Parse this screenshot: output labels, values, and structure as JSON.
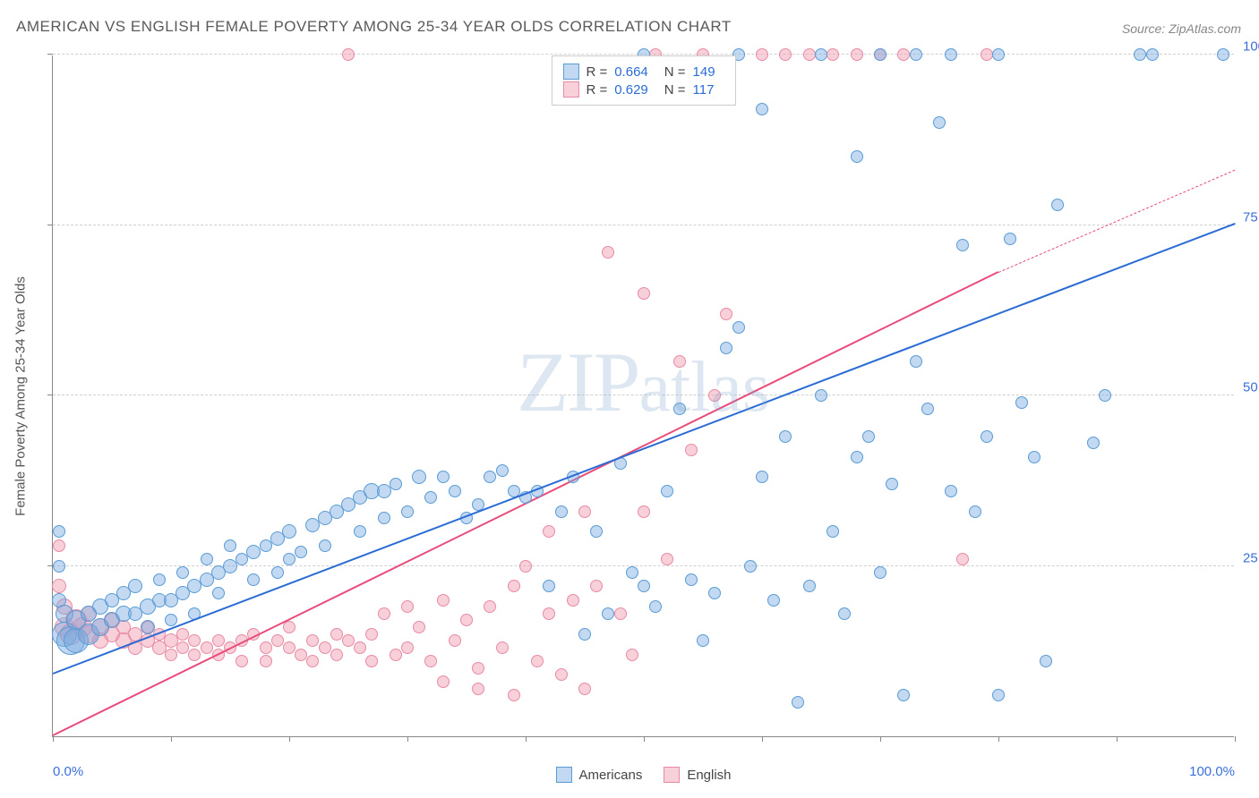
{
  "title": "AMERICAN VS ENGLISH FEMALE POVERTY AMONG 25-34 YEAR OLDS CORRELATION CHART",
  "source_label": "Source: ZipAtlas.com",
  "y_axis_label": "Female Poverty Among 25-34 Year Olds",
  "watermark": "ZIPatlas",
  "chart": {
    "type": "scatter",
    "xlim": [
      0,
      100
    ],
    "ylim": [
      0,
      100
    ],
    "x_ticks_major": [
      0,
      100
    ],
    "x_tick_labels": [
      "0.0%",
      "100.0%"
    ],
    "x_minor_ticks": [
      10,
      20,
      30,
      40,
      50,
      60,
      70,
      80,
      90
    ],
    "y_ticks_major": [
      25,
      50,
      75,
      100
    ],
    "y_tick_labels": [
      "25.0%",
      "50.0%",
      "75.0%",
      "100.0%"
    ],
    "y_minor_ticks": [],
    "grid_color": "#d0d0d0",
    "axis_color": "#888888",
    "background_color": "#ffffff",
    "tick_label_color": "#3a6fd8",
    "axis_label_color": "#555555"
  },
  "series": {
    "americans": {
      "label": "Americans",
      "fill": "rgba(120,170,225,0.45)",
      "stroke": "#5a9bd5",
      "trend_color": "#2b6cd4",
      "trend_width": 2.5,
      "trend_style": "solid",
      "R": "0.664",
      "N": "149",
      "trend": {
        "x1": 0,
        "y1": 9,
        "x2": 100,
        "y2": 75
      },
      "points": [
        {
          "x": 0.5,
          "y": 30,
          "r": 7
        },
        {
          "x": 0.5,
          "y": 25,
          "r": 7
        },
        {
          "x": 0.5,
          "y": 20,
          "r": 8
        },
        {
          "x": 1,
          "y": 18,
          "r": 10
        },
        {
          "x": 1,
          "y": 15,
          "r": 14
        },
        {
          "x": 1.5,
          "y": 14,
          "r": 16
        },
        {
          "x": 2,
          "y": 14,
          "r": 14
        },
        {
          "x": 2,
          "y": 17,
          "r": 11
        },
        {
          "x": 3,
          "y": 15,
          "r": 12
        },
        {
          "x": 3,
          "y": 18,
          "r": 9
        },
        {
          "x": 4,
          "y": 16,
          "r": 10
        },
        {
          "x": 4,
          "y": 19,
          "r": 9
        },
        {
          "x": 5,
          "y": 17,
          "r": 9
        },
        {
          "x": 5,
          "y": 20,
          "r": 8
        },
        {
          "x": 6,
          "y": 18,
          "r": 9
        },
        {
          "x": 6,
          "y": 21,
          "r": 8
        },
        {
          "x": 7,
          "y": 18,
          "r": 8
        },
        {
          "x": 7,
          "y": 22,
          "r": 8
        },
        {
          "x": 8,
          "y": 19,
          "r": 9
        },
        {
          "x": 8,
          "y": 16,
          "r": 8
        },
        {
          "x": 9,
          "y": 20,
          "r": 8
        },
        {
          "x": 9,
          "y": 23,
          "r": 7
        },
        {
          "x": 10,
          "y": 20,
          "r": 8
        },
        {
          "x": 10,
          "y": 17,
          "r": 7
        },
        {
          "x": 11,
          "y": 21,
          "r": 8
        },
        {
          "x": 11,
          "y": 24,
          "r": 7
        },
        {
          "x": 12,
          "y": 22,
          "r": 8
        },
        {
          "x": 12,
          "y": 18,
          "r": 7
        },
        {
          "x": 13,
          "y": 23,
          "r": 8
        },
        {
          "x": 13,
          "y": 26,
          "r": 7
        },
        {
          "x": 14,
          "y": 24,
          "r": 8
        },
        {
          "x": 14,
          "y": 21,
          "r": 7
        },
        {
          "x": 15,
          "y": 25,
          "r": 8
        },
        {
          "x": 15,
          "y": 28,
          "r": 7
        },
        {
          "x": 16,
          "y": 26,
          "r": 7
        },
        {
          "x": 17,
          "y": 27,
          "r": 8
        },
        {
          "x": 17,
          "y": 23,
          "r": 7
        },
        {
          "x": 18,
          "y": 28,
          "r": 7
        },
        {
          "x": 19,
          "y": 29,
          "r": 8
        },
        {
          "x": 19,
          "y": 24,
          "r": 7
        },
        {
          "x": 20,
          "y": 30,
          "r": 8
        },
        {
          "x": 20,
          "y": 26,
          "r": 7
        },
        {
          "x": 21,
          "y": 27,
          "r": 7
        },
        {
          "x": 22,
          "y": 31,
          "r": 8
        },
        {
          "x": 23,
          "y": 32,
          "r": 8
        },
        {
          "x": 23,
          "y": 28,
          "r": 7
        },
        {
          "x": 24,
          "y": 33,
          "r": 8
        },
        {
          "x": 25,
          "y": 34,
          "r": 8
        },
        {
          "x": 26,
          "y": 35,
          "r": 8
        },
        {
          "x": 26,
          "y": 30,
          "r": 7
        },
        {
          "x": 27,
          "y": 36,
          "r": 9
        },
        {
          "x": 28,
          "y": 36,
          "r": 8
        },
        {
          "x": 28,
          "y": 32,
          "r": 7
        },
        {
          "x": 29,
          "y": 37,
          "r": 7
        },
        {
          "x": 30,
          "y": 33,
          "r": 7
        },
        {
          "x": 31,
          "y": 38,
          "r": 8
        },
        {
          "x": 32,
          "y": 35,
          "r": 7
        },
        {
          "x": 33,
          "y": 38,
          "r": 7
        },
        {
          "x": 34,
          "y": 36,
          "r": 7
        },
        {
          "x": 35,
          "y": 32,
          "r": 7
        },
        {
          "x": 36,
          "y": 34,
          "r": 7
        },
        {
          "x": 37,
          "y": 38,
          "r": 7
        },
        {
          "x": 38,
          "y": 39,
          "r": 7
        },
        {
          "x": 39,
          "y": 36,
          "r": 7
        },
        {
          "x": 40,
          "y": 35,
          "r": 7
        },
        {
          "x": 41,
          "y": 36,
          "r": 7
        },
        {
          "x": 42,
          "y": 22,
          "r": 7
        },
        {
          "x": 43,
          "y": 33,
          "r": 7
        },
        {
          "x": 44,
          "y": 38,
          "r": 7
        },
        {
          "x": 45,
          "y": 15,
          "r": 7
        },
        {
          "x": 46,
          "y": 30,
          "r": 7
        },
        {
          "x": 47,
          "y": 18,
          "r": 7
        },
        {
          "x": 48,
          "y": 40,
          "r": 7
        },
        {
          "x": 49,
          "y": 24,
          "r": 7
        },
        {
          "x": 50,
          "y": 22,
          "r": 7
        },
        {
          "x": 50,
          "y": 100,
          "r": 7
        },
        {
          "x": 51,
          "y": 19,
          "r": 7
        },
        {
          "x": 52,
          "y": 36,
          "r": 7
        },
        {
          "x": 53,
          "y": 48,
          "r": 7
        },
        {
          "x": 54,
          "y": 23,
          "r": 7
        },
        {
          "x": 55,
          "y": 14,
          "r": 7
        },
        {
          "x": 56,
          "y": 21,
          "r": 7
        },
        {
          "x": 57,
          "y": 57,
          "r": 7
        },
        {
          "x": 58,
          "y": 100,
          "r": 7
        },
        {
          "x": 58,
          "y": 60,
          "r": 7
        },
        {
          "x": 59,
          "y": 25,
          "r": 7
        },
        {
          "x": 60,
          "y": 38,
          "r": 7
        },
        {
          "x": 60,
          "y": 92,
          "r": 7
        },
        {
          "x": 61,
          "y": 20,
          "r": 7
        },
        {
          "x": 62,
          "y": 44,
          "r": 7
        },
        {
          "x": 63,
          "y": 5,
          "r": 7
        },
        {
          "x": 64,
          "y": 22,
          "r": 7
        },
        {
          "x": 65,
          "y": 50,
          "r": 7
        },
        {
          "x": 65,
          "y": 100,
          "r": 7
        },
        {
          "x": 66,
          "y": 30,
          "r": 7
        },
        {
          "x": 67,
          "y": 18,
          "r": 7
        },
        {
          "x": 68,
          "y": 41,
          "r": 7
        },
        {
          "x": 68,
          "y": 85,
          "r": 7
        },
        {
          "x": 69,
          "y": 44,
          "r": 7
        },
        {
          "x": 70,
          "y": 24,
          "r": 7
        },
        {
          "x": 70,
          "y": 100,
          "r": 7
        },
        {
          "x": 71,
          "y": 37,
          "r": 7
        },
        {
          "x": 72,
          "y": 6,
          "r": 7
        },
        {
          "x": 73,
          "y": 55,
          "r": 7
        },
        {
          "x": 73,
          "y": 100,
          "r": 7
        },
        {
          "x": 74,
          "y": 48,
          "r": 7
        },
        {
          "x": 75,
          "y": 90,
          "r": 7
        },
        {
          "x": 76,
          "y": 36,
          "r": 7
        },
        {
          "x": 76,
          "y": 100,
          "r": 7
        },
        {
          "x": 77,
          "y": 72,
          "r": 7
        },
        {
          "x": 78,
          "y": 33,
          "r": 7
        },
        {
          "x": 79,
          "y": 44,
          "r": 7
        },
        {
          "x": 80,
          "y": 6,
          "r": 7
        },
        {
          "x": 80,
          "y": 100,
          "r": 7
        },
        {
          "x": 81,
          "y": 73,
          "r": 7
        },
        {
          "x": 82,
          "y": 49,
          "r": 7
        },
        {
          "x": 83,
          "y": 41,
          "r": 7
        },
        {
          "x": 84,
          "y": 11,
          "r": 7
        },
        {
          "x": 85,
          "y": 78,
          "r": 7
        },
        {
          "x": 88,
          "y": 43,
          "r": 7
        },
        {
          "x": 89,
          "y": 50,
          "r": 7
        },
        {
          "x": 92,
          "y": 100,
          "r": 7
        },
        {
          "x": 93,
          "y": 100,
          "r": 7
        },
        {
          "x": 99,
          "y": 100,
          "r": 7
        }
      ]
    },
    "english": {
      "label": "English",
      "fill": "rgba(240,150,170,0.45)",
      "stroke": "#e88aa5",
      "trend_color": "#e94b7a",
      "trend_width": 2.5,
      "trend_style": "solid",
      "trend_extend_style": "dashed",
      "R": "0.629",
      "N": "117",
      "trend": {
        "x1": 0,
        "y1": 0,
        "x2": 80,
        "y2": 68
      },
      "trend_extend": {
        "x1": 80,
        "y1": 68,
        "x2": 100,
        "y2": 83
      },
      "points": [
        {
          "x": 0.5,
          "y": 28,
          "r": 7
        },
        {
          "x": 0.5,
          "y": 22,
          "r": 8
        },
        {
          "x": 1,
          "y": 19,
          "r": 9
        },
        {
          "x": 1,
          "y": 16,
          "r": 11
        },
        {
          "x": 1.5,
          "y": 15,
          "r": 12
        },
        {
          "x": 2,
          "y": 17,
          "r": 12
        },
        {
          "x": 2.5,
          "y": 16,
          "r": 11
        },
        {
          "x": 3,
          "y": 15,
          "r": 10
        },
        {
          "x": 3,
          "y": 18,
          "r": 9
        },
        {
          "x": 4,
          "y": 16,
          "r": 10
        },
        {
          "x": 4,
          "y": 14,
          "r": 9
        },
        {
          "x": 5,
          "y": 15,
          "r": 9
        },
        {
          "x": 5,
          "y": 17,
          "r": 8
        },
        {
          "x": 6,
          "y": 14,
          "r": 9
        },
        {
          "x": 6,
          "y": 16,
          "r": 8
        },
        {
          "x": 7,
          "y": 15,
          "r": 8
        },
        {
          "x": 7,
          "y": 13,
          "r": 8
        },
        {
          "x": 8,
          "y": 14,
          "r": 8
        },
        {
          "x": 8,
          "y": 16,
          "r": 7
        },
        {
          "x": 9,
          "y": 13,
          "r": 8
        },
        {
          "x": 9,
          "y": 15,
          "r": 7
        },
        {
          "x": 10,
          "y": 14,
          "r": 8
        },
        {
          "x": 10,
          "y": 12,
          "r": 7
        },
        {
          "x": 11,
          "y": 13,
          "r": 7
        },
        {
          "x": 11,
          "y": 15,
          "r": 7
        },
        {
          "x": 12,
          "y": 14,
          "r": 7
        },
        {
          "x": 12,
          "y": 12,
          "r": 7
        },
        {
          "x": 13,
          "y": 13,
          "r": 7
        },
        {
          "x": 14,
          "y": 14,
          "r": 7
        },
        {
          "x": 14,
          "y": 12,
          "r": 7
        },
        {
          "x": 15,
          "y": 13,
          "r": 7
        },
        {
          "x": 16,
          "y": 14,
          "r": 7
        },
        {
          "x": 16,
          "y": 11,
          "r": 7
        },
        {
          "x": 17,
          "y": 15,
          "r": 7
        },
        {
          "x": 18,
          "y": 13,
          "r": 7
        },
        {
          "x": 18,
          "y": 11,
          "r": 7
        },
        {
          "x": 19,
          "y": 14,
          "r": 7
        },
        {
          "x": 20,
          "y": 13,
          "r": 7
        },
        {
          "x": 20,
          "y": 16,
          "r": 7
        },
        {
          "x": 21,
          "y": 12,
          "r": 7
        },
        {
          "x": 22,
          "y": 14,
          "r": 7
        },
        {
          "x": 22,
          "y": 11,
          "r": 7
        },
        {
          "x": 23,
          "y": 13,
          "r": 7
        },
        {
          "x": 24,
          "y": 15,
          "r": 7
        },
        {
          "x": 24,
          "y": 12,
          "r": 7
        },
        {
          "x": 25,
          "y": 100,
          "r": 7
        },
        {
          "x": 25,
          "y": 14,
          "r": 7
        },
        {
          "x": 26,
          "y": 13,
          "r": 7
        },
        {
          "x": 27,
          "y": 11,
          "r": 7
        },
        {
          "x": 27,
          "y": 15,
          "r": 7
        },
        {
          "x": 28,
          "y": 18,
          "r": 7
        },
        {
          "x": 29,
          "y": 12,
          "r": 7
        },
        {
          "x": 30,
          "y": 19,
          "r": 7
        },
        {
          "x": 30,
          "y": 13,
          "r": 7
        },
        {
          "x": 31,
          "y": 16,
          "r": 7
        },
        {
          "x": 32,
          "y": 11,
          "r": 7
        },
        {
          "x": 33,
          "y": 20,
          "r": 7
        },
        {
          "x": 33,
          "y": 8,
          "r": 7
        },
        {
          "x": 34,
          "y": 14,
          "r": 7
        },
        {
          "x": 35,
          "y": 17,
          "r": 7
        },
        {
          "x": 36,
          "y": 10,
          "r": 7
        },
        {
          "x": 36,
          "y": 7,
          "r": 7
        },
        {
          "x": 37,
          "y": 19,
          "r": 7
        },
        {
          "x": 38,
          "y": 13,
          "r": 7
        },
        {
          "x": 39,
          "y": 22,
          "r": 7
        },
        {
          "x": 39,
          "y": 6,
          "r": 7
        },
        {
          "x": 40,
          "y": 25,
          "r": 7
        },
        {
          "x": 41,
          "y": 11,
          "r": 7
        },
        {
          "x": 42,
          "y": 30,
          "r": 7
        },
        {
          "x": 42,
          "y": 18,
          "r": 7
        },
        {
          "x": 43,
          "y": 9,
          "r": 7
        },
        {
          "x": 44,
          "y": 20,
          "r": 7
        },
        {
          "x": 45,
          "y": 33,
          "r": 7
        },
        {
          "x": 45,
          "y": 7,
          "r": 7
        },
        {
          "x": 46,
          "y": 22,
          "r": 7
        },
        {
          "x": 47,
          "y": 71,
          "r": 7
        },
        {
          "x": 48,
          "y": 18,
          "r": 7
        },
        {
          "x": 49,
          "y": 12,
          "r": 7
        },
        {
          "x": 50,
          "y": 65,
          "r": 7
        },
        {
          "x": 50,
          "y": 33,
          "r": 7
        },
        {
          "x": 51,
          "y": 100,
          "r": 7
        },
        {
          "x": 52,
          "y": 26,
          "r": 7
        },
        {
          "x": 53,
          "y": 55,
          "r": 7
        },
        {
          "x": 54,
          "y": 42,
          "r": 7
        },
        {
          "x": 55,
          "y": 100,
          "r": 7
        },
        {
          "x": 56,
          "y": 50,
          "r": 7
        },
        {
          "x": 57,
          "y": 62,
          "r": 7
        },
        {
          "x": 60,
          "y": 100,
          "r": 7
        },
        {
          "x": 62,
          "y": 100,
          "r": 7
        },
        {
          "x": 64,
          "y": 100,
          "r": 7
        },
        {
          "x": 66,
          "y": 100,
          "r": 7
        },
        {
          "x": 68,
          "y": 100,
          "r": 7
        },
        {
          "x": 70,
          "y": 100,
          "r": 7
        },
        {
          "x": 72,
          "y": 100,
          "r": 7
        },
        {
          "x": 77,
          "y": 26,
          "r": 7
        },
        {
          "x": 79,
          "y": 100,
          "r": 7
        }
      ]
    }
  },
  "legend_top": {
    "r_label": "R =",
    "n_label": "N ="
  },
  "legend_bottom": {}
}
